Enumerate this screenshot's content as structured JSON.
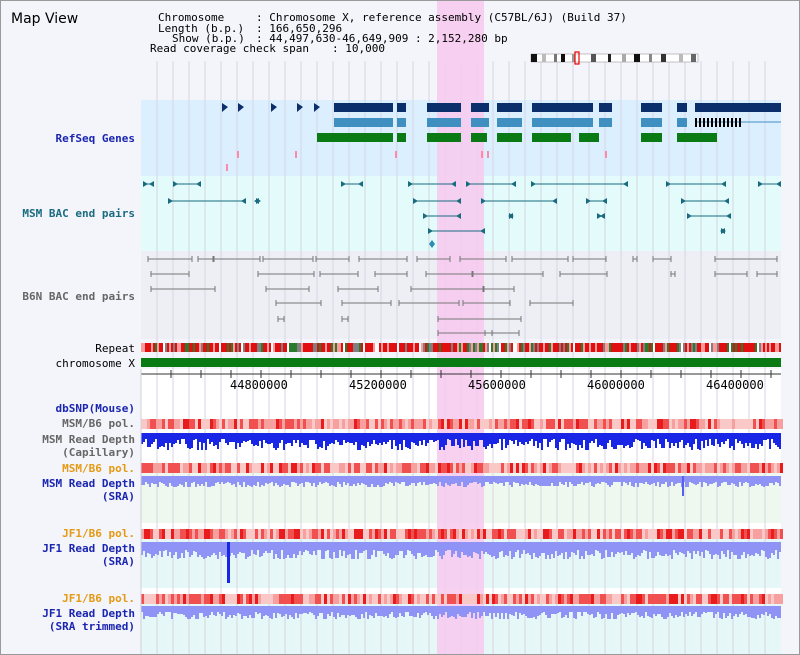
{
  "page": {
    "title": "Map View"
  },
  "header": {
    "chromosome_key": "Chromosome",
    "chromosome_val": ": Chromosome X, reference assembly (C57BL/6J) (Build 37)",
    "length_key": "Length (b.p.)",
    "length_val": ": 166,650,296",
    "show_key": "Show (b.p.)",
    "show_val": ": 44,497,630-46,649,909 : 2,152,280 bp",
    "coverage_key": "Read coverage check span",
    "coverage_val": ": 10,000"
  },
  "tracks": {
    "refseq": "RefSeq Genes",
    "msm_bac": "MSM BAC end pairs",
    "b6n_bac": "B6N BAC end pairs",
    "repeat": "Repeat",
    "chromosome": "chromosome X",
    "dbsnp": "dbSNP(Mouse)",
    "msm_b6_pol_1": "MSM/B6 pol.",
    "msm_read_depth_cap_1": "MSM Read Depth",
    "msm_read_depth_cap_2": "(Capillary)",
    "msm_b6_pol_2": "MSM/B6 pol.",
    "msm_read_depth_sra_1": "MSM Read Depth",
    "msm_read_depth_sra_2": "(SRA)",
    "jf1_b6_pol_1": "JF1/B6 pol.",
    "jf1_read_depth_sra_1": "JF1 Read Depth",
    "jf1_read_depth_sra_2": "(SRA)",
    "jf1_b6_pol_2": "JF1/B6 pol.",
    "jf1_read_depth_trim_1": "JF1 Read Depth",
    "jf1_read_depth_trim_2": "(SRA trimmed)"
  },
  "axis": {
    "ticks": [
      "44800000",
      "45200000",
      "45600000",
      "46000000",
      "46400000"
    ]
  },
  "colors": {
    "refseq_bg": "#dcefff",
    "msm_bac_bg": "#e3fbfb",
    "highlight": "#f7c9ee",
    "gene_dark": "#0b2f6b",
    "gene_mid": "#3f8fc0",
    "gene_green": "#0a7a14",
    "chrom_green": "#0a7a14",
    "msm_depth": "#1a26e6",
    "sra_depth": "#8f93f5",
    "label_blue": "#1a26b0",
    "label_orange": "#e49a12",
    "label_teal": "#1a6b7f",
    "label_gray": "#666666"
  }
}
